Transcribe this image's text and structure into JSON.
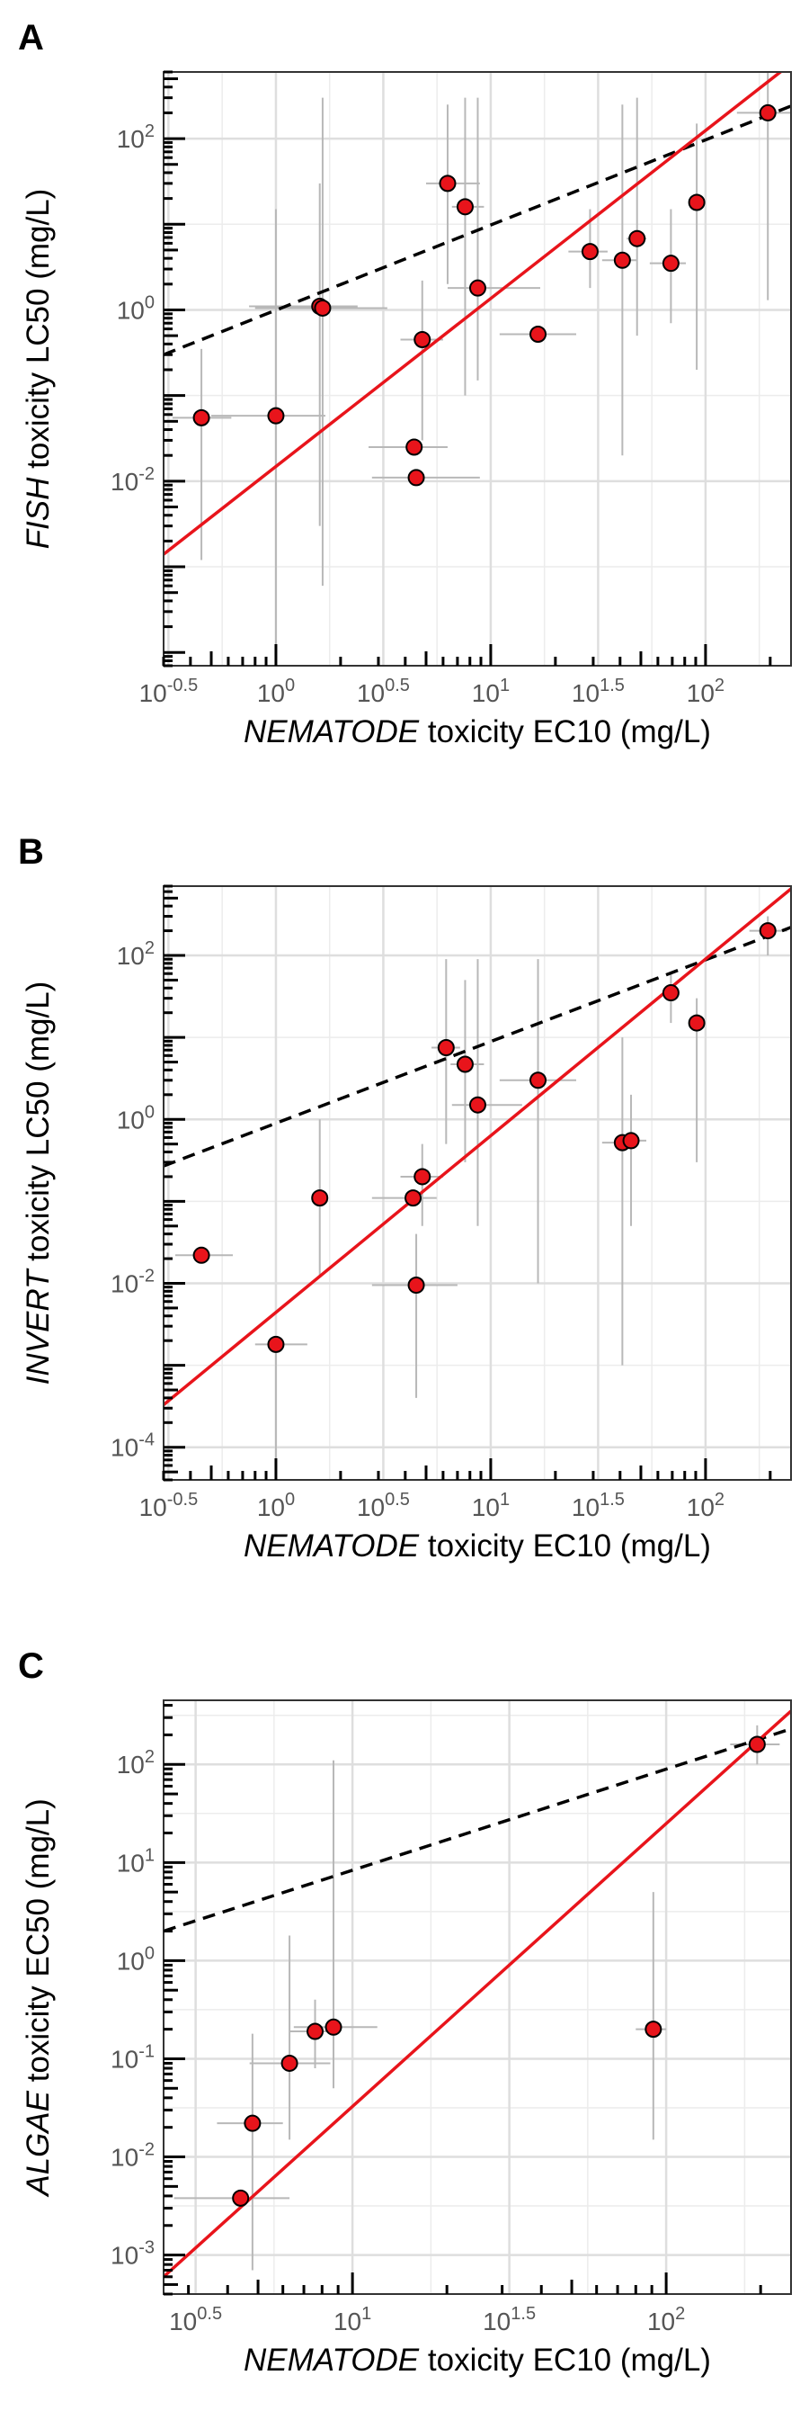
{
  "chart_data": [
    {
      "panel_label": "A",
      "type": "scatter",
      "x_scale": "log10",
      "y_scale": "log10",
      "xlim": [
        0.3,
        250
      ],
      "ylim": [
        7e-05,
        600
      ],
      "x_ticks": [
        {
          "value": 0.316,
          "base": "10",
          "exp": "-0.5"
        },
        {
          "value": 1,
          "base": "10",
          "exp": "0"
        },
        {
          "value": 3.162,
          "base": "10",
          "exp": "0.5"
        },
        {
          "value": 10,
          "base": "10",
          "exp": "1"
        },
        {
          "value": 31.62,
          "base": "10",
          "exp": "1.5"
        },
        {
          "value": 100,
          "base": "10",
          "exp": "2"
        }
      ],
      "y_ticks": [
        {
          "value": 0.01,
          "base": "10",
          "exp": "-2"
        },
        {
          "value": 1,
          "base": "10",
          "exp": "0"
        },
        {
          "value": 100,
          "base": "10",
          "exp": "2"
        }
      ],
      "xlabel_italic": "NEMATODE",
      "xlabel_rest": " toxicity EC10 (mg/L)",
      "ylabel_italic": "FISH",
      "ylabel_rest": " toxicity LC50 (mg/L)",
      "grid": true,
      "points": [
        {
          "x": 0.45,
          "y": 0.055,
          "xerr": [
            0.33,
            0.62
          ],
          "yerr": [
            0.0012,
            0.35
          ]
        },
        {
          "x": 1.0,
          "y": 0.058,
          "xerr": [
            0.5,
            1.7
          ],
          "yerr": [
            7e-05,
            15
          ]
        },
        {
          "x": 1.6,
          "y": 1.1,
          "xerr": [
            0.75,
            2.4
          ],
          "yerr": [
            0.003,
            30
          ]
        },
        {
          "x": 1.65,
          "y": 1.05,
          "xerr": [
            0.8,
            3.3
          ],
          "yerr": [
            0.0006,
            300
          ]
        },
        {
          "x": 4.4,
          "y": 0.025,
          "xerr": [
            2.7,
            6.3
          ],
          "yerr": [
            0.025,
            0.025
          ]
        },
        {
          "x": 4.5,
          "y": 0.011,
          "xerr": [
            2.8,
            8.9
          ],
          "yerr": [
            0.011,
            0.011
          ]
        },
        {
          "x": 4.8,
          "y": 0.45,
          "xerr": [
            3.8,
            6.0
          ],
          "yerr": [
            0.03,
            2.2
          ]
        },
        {
          "x": 6.3,
          "y": 30,
          "xerr": [
            5.0,
            8.9
          ],
          "yerr": [
            2,
            250
          ]
        },
        {
          "x": 7.6,
          "y": 16,
          "xerr": [
            6.6,
            9.3
          ],
          "yerr": [
            0.1,
            300
          ]
        },
        {
          "x": 8.7,
          "y": 1.8,
          "xerr": [
            6.3,
            17
          ],
          "yerr": [
            0.15,
            300
          ]
        },
        {
          "x": 16.6,
          "y": 0.52,
          "xerr": [
            11,
            25
          ],
          "yerr": [
            0.52,
            0.52
          ]
        },
        {
          "x": 29,
          "y": 4.8,
          "xerr": [
            23,
            35
          ],
          "yerr": [
            1.8,
            15
          ]
        },
        {
          "x": 41,
          "y": 3.8,
          "xerr": [
            33,
            48
          ],
          "yerr": [
            0.02,
            250
          ]
        },
        {
          "x": 48,
          "y": 6.8,
          "xerr": [
            43,
            53
          ],
          "yerr": [
            0.5,
            300
          ]
        },
        {
          "x": 69,
          "y": 3.5,
          "xerr": [
            55,
            81
          ],
          "yerr": [
            0.7,
            15
          ]
        },
        {
          "x": 91,
          "y": 18,
          "xerr": [
            87,
            96
          ],
          "yerr": [
            0.2,
            150
          ]
        },
        {
          "x": 195,
          "y": 200,
          "xerr": [
            140,
            250
          ],
          "yerr": [
            1.3,
            2500
          ]
        }
      ],
      "red_line": [
        [
          0.3,
          0.0014
        ],
        [
          250,
          750
        ]
      ],
      "dashed_line": [
        [
          0.3,
          0.3
        ],
        [
          250,
          240
        ]
      ]
    },
    {
      "panel_label": "B",
      "type": "scatter",
      "x_scale": "log10",
      "y_scale": "log10",
      "xlim": [
        0.3,
        250
      ],
      "ylim": [
        4e-05,
        700
      ],
      "x_ticks": [
        {
          "value": 0.316,
          "base": "10",
          "exp": "-0.5"
        },
        {
          "value": 1,
          "base": "10",
          "exp": "0"
        },
        {
          "value": 3.162,
          "base": "10",
          "exp": "0.5"
        },
        {
          "value": 10,
          "base": "10",
          "exp": "1"
        },
        {
          "value": 31.62,
          "base": "10",
          "exp": "1.5"
        },
        {
          "value": 100,
          "base": "10",
          "exp": "2"
        }
      ],
      "y_ticks": [
        {
          "value": 0.0001,
          "base": "10",
          "exp": "-4"
        },
        {
          "value": 0.01,
          "base": "10",
          "exp": "-2"
        },
        {
          "value": 1,
          "base": "10",
          "exp": "0"
        },
        {
          "value": 100,
          "base": "10",
          "exp": "2"
        }
      ],
      "xlabel_italic": "NEMATODE",
      "xlabel_rest": " toxicity EC10 (mg/L)",
      "ylabel_italic": "INVERT",
      "ylabel_rest": " toxicity LC50 (mg/L)",
      "grid": true,
      "points": [
        {
          "x": 0.45,
          "y": 0.022,
          "xerr": [
            0.34,
            0.63
          ],
          "yerr": [
            0.022,
            0.022
          ]
        },
        {
          "x": 1.0,
          "y": 0.0018,
          "xerr": [
            0.8,
            1.4
          ],
          "yerr": [
            4e-05,
            0.0018
          ]
        },
        {
          "x": 1.6,
          "y": 0.11,
          "xerr": [
            1.6,
            1.6
          ],
          "yerr": [
            0.012,
            1.0
          ]
        },
        {
          "x": 4.35,
          "y": 0.11,
          "xerr": [
            2.8,
            5.6
          ],
          "yerr": [
            0.11,
            0.11
          ]
        },
        {
          "x": 4.5,
          "y": 0.0095,
          "xerr": [
            2.8,
            7.0
          ],
          "yerr": [
            0.0004,
            0.04
          ]
        },
        {
          "x": 4.8,
          "y": 0.2,
          "xerr": [
            3.8,
            6.0
          ],
          "yerr": [
            0.05,
            0.5
          ]
        },
        {
          "x": 6.2,
          "y": 7.5,
          "xerr": [
            5.3,
            7.2
          ],
          "yerr": [
            0.5,
            90
          ]
        },
        {
          "x": 7.6,
          "y": 4.7,
          "xerr": [
            6.5,
            9.3
          ],
          "yerr": [
            0.3,
            50
          ]
        },
        {
          "x": 8.7,
          "y": 1.5,
          "xerr": [
            6.6,
            14
          ],
          "yerr": [
            0.05,
            90
          ]
        },
        {
          "x": 16.6,
          "y": 3.0,
          "xerr": [
            11,
            25
          ],
          "yerr": [
            0.01,
            90
          ]
        },
        {
          "x": 41,
          "y": 0.52,
          "xerr": [
            33,
            48
          ],
          "yerr": [
            0.001,
            10
          ]
        },
        {
          "x": 45,
          "y": 0.55,
          "xerr": [
            41,
            53
          ],
          "yerr": [
            0.05,
            2
          ]
        },
        {
          "x": 69,
          "y": 35,
          "xerr": [
            69,
            69
          ],
          "yerr": [
            15,
            60
          ]
        },
        {
          "x": 91,
          "y": 15,
          "xerr": [
            91,
            91
          ],
          "yerr": [
            0.3,
            30
          ]
        },
        {
          "x": 195,
          "y": 200,
          "xerr": [
            160,
            240
          ],
          "yerr": [
            100,
            300
          ]
        }
      ],
      "red_line": [
        [
          0.3,
          0.00033
        ],
        [
          250,
          650
        ]
      ],
      "dashed_line": [
        [
          0.3,
          0.27
        ],
        [
          250,
          220
        ]
      ]
    },
    {
      "panel_label": "C",
      "type": "scatter",
      "x_scale": "log10",
      "y_scale": "log10",
      "xlim": [
        2.5,
        250
      ],
      "ylim": [
        0.0004,
        450
      ],
      "x_ticks": [
        {
          "value": 3.162,
          "base": "10",
          "exp": "0.5"
        },
        {
          "value": 10,
          "base": "10",
          "exp": "1"
        },
        {
          "value": 31.62,
          "base": "10",
          "exp": "1.5"
        },
        {
          "value": 100,
          "base": "10",
          "exp": "2"
        }
      ],
      "y_ticks": [
        {
          "value": 0.001,
          "base": "10",
          "exp": "-3"
        },
        {
          "value": 0.01,
          "base": "10",
          "exp": "-2"
        },
        {
          "value": 0.1,
          "base": "10",
          "exp": "-1"
        },
        {
          "value": 1,
          "base": "10",
          "exp": "0"
        },
        {
          "value": 10,
          "base": "10",
          "exp": "1"
        },
        {
          "value": 100,
          "base": "10",
          "exp": "2"
        }
      ],
      "xlabel_italic": "NEMATODE",
      "xlabel_rest": " toxicity EC10 (mg/L)",
      "ylabel_italic": "ALGAE",
      "ylabel_rest": " toxicity EC50 (mg/L)",
      "grid": true,
      "points": [
        {
          "x": 4.4,
          "y": 0.0038,
          "xerr": [
            2.7,
            6.3
          ],
          "yerr": [
            0.0038,
            0.0038
          ]
        },
        {
          "x": 4.8,
          "y": 0.022,
          "xerr": [
            3.7,
            6.0
          ],
          "yerr": [
            0.0007,
            0.18
          ]
        },
        {
          "x": 6.3,
          "y": 0.09,
          "xerr": [
            4.7,
            8.5
          ],
          "yerr": [
            0.015,
            1.8
          ]
        },
        {
          "x": 7.6,
          "y": 0.19,
          "xerr": [
            6.3,
            9.1
          ],
          "yerr": [
            0.08,
            0.4
          ]
        },
        {
          "x": 8.7,
          "y": 0.21,
          "xerr": [
            6.5,
            12
          ],
          "yerr": [
            0.05,
            110
          ]
        },
        {
          "x": 91,
          "y": 0.2,
          "xerr": [
            80,
            100
          ],
          "yerr": [
            0.015,
            5
          ]
        },
        {
          "x": 195,
          "y": 160,
          "xerr": [
            160,
            230
          ],
          "yerr": [
            100,
            250
          ]
        }
      ],
      "red_line": [
        [
          2.5,
          0.0006
        ],
        [
          250,
          350
        ]
      ],
      "dashed_line": [
        [
          2.5,
          2.0
        ],
        [
          250,
          230
        ]
      ]
    }
  ]
}
